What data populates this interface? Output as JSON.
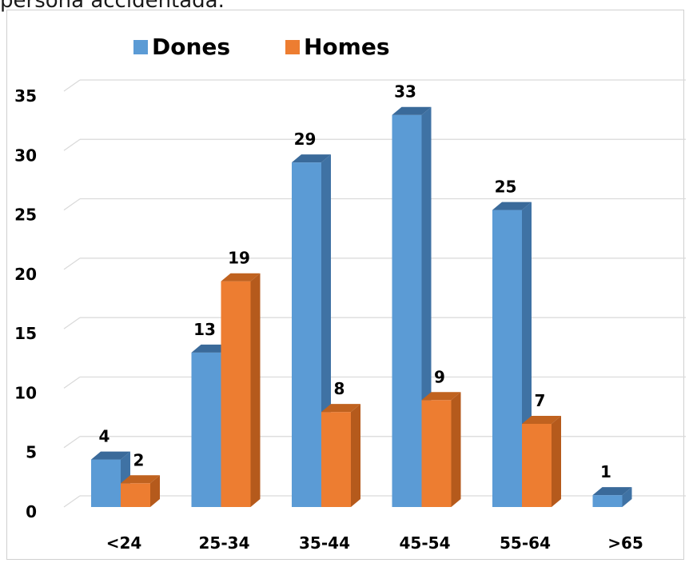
{
  "top_text": "persona accidentada.",
  "colors": {
    "Dones": {
      "front": "#5b9bd5",
      "side": "#3f72a4",
      "top": "#3a6a9a"
    },
    "Homes": {
      "front": "#ed7d31",
      "side": "#b55a1c",
      "top": "#c0621f"
    },
    "grid": "#d9d9d9"
  },
  "chart_data": {
    "type": "bar",
    "categories": [
      "<24",
      "25-34",
      "35-44",
      "45-54",
      "55-64",
      ">65"
    ],
    "series": [
      {
        "name": "Dones",
        "values": [
          4,
          13,
          29,
          33,
          25,
          1
        ]
      },
      {
        "name": "Homes",
        "values": [
          2,
          19,
          8,
          9,
          7,
          null
        ]
      }
    ],
    "ylim": [
      0,
      35
    ],
    "yticks": [
      0,
      5,
      10,
      15,
      20,
      25,
      30,
      35
    ],
    "grid": true,
    "legend_position": "top",
    "three_d": true
  }
}
